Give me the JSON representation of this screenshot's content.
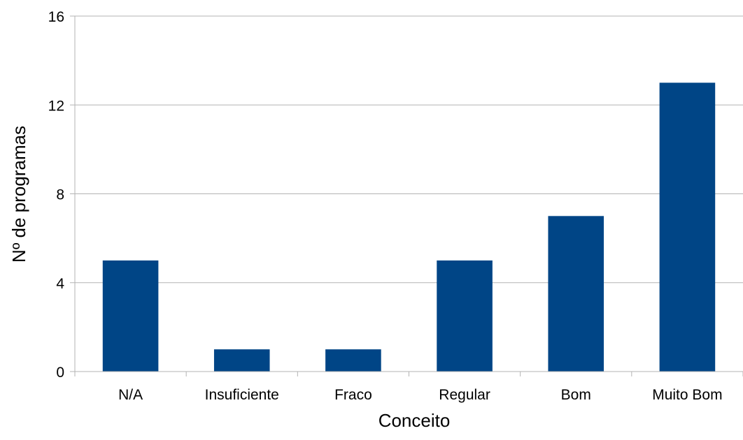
{
  "chart_data": {
    "type": "bar",
    "categories": [
      "N/A",
      "Insuficiente",
      "Fraco",
      "Regular",
      "Bom",
      "Muito Bom"
    ],
    "values": [
      5,
      1,
      1,
      5,
      7,
      13
    ],
    "xlabel": "Conceito",
    "ylabel": "Nº de programas",
    "ylim": [
      0,
      16
    ],
    "yticks": [
      0,
      4,
      8,
      12,
      16
    ],
    "grid": true,
    "legend": "none",
    "bar_color": "#004586",
    "grid_color": "#b3b3b3",
    "axis_color": "#b3b3b3"
  }
}
